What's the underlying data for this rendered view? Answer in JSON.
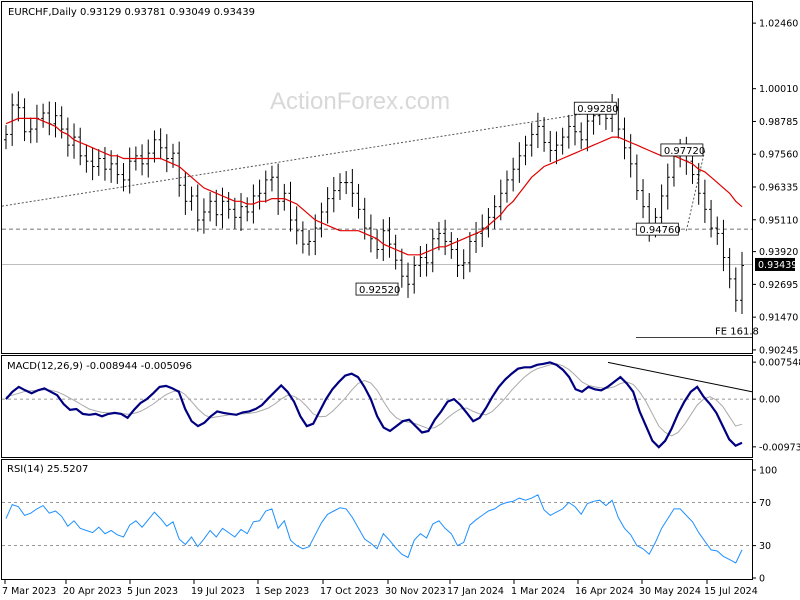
{
  "chart_data": [
    {
      "type": "ohlc",
      "title": "EURCHF,Daily",
      "ohlc_readout": "0.93129 0.93781 0.93049 0.93439",
      "watermark": "ActionForex.com",
      "ylim": [
        0.9013,
        1.0325
      ],
      "y_ticks": [
        "1.02460",
        "1.00010",
        "0.98785",
        "0.97560",
        "0.96335",
        "0.95110",
        "0.93920",
        "0.92695",
        "0.91470",
        "0.90245"
      ],
      "x_ticks": [
        "7 Mar 2023",
        "20 Apr 2023",
        "5 Jun 2023",
        "19 Jul 2023",
        "1 Sep 2023",
        "17 Oct 2023",
        "30 Nov 2023",
        "17 Jan 2024",
        "1 Mar 2024",
        "16 Apr 2024",
        "30 May 2024",
        "15 Jul 2024"
      ],
      "key_levels": [
        {
          "label": "0.99280",
          "value": 0.9928
        },
        {
          "label": "0.97720",
          "value": 0.9772
        },
        {
          "label": "0.94760",
          "value": 0.9476
        },
        {
          "label": "0.92520",
          "value": 0.9252
        }
      ],
      "last_price_label": "0.93439",
      "last_price": 0.93439,
      "annotation": "FE 161.8",
      "series": [
        {
          "name": "price",
          "close": [
            0.983,
            0.994,
            0.993,
            0.984,
            0.985,
            0.989,
            0.991,
            0.987,
            0.99,
            0.985,
            0.979,
            0.982,
            0.975,
            0.973,
            0.971,
            0.974,
            0.97,
            0.972,
            0.968,
            0.966,
            0.973,
            0.975,
            0.972,
            0.976,
            0.981,
            0.978,
            0.974,
            0.976,
            0.964,
            0.958,
            0.96,
            0.951,
            0.954,
            0.958,
            0.953,
            0.958,
            0.955,
            0.952,
            0.956,
            0.954,
            0.96,
            0.961,
            0.966,
            0.967,
            0.958,
            0.961,
            0.951,
            0.947,
            0.942,
            0.943,
            0.948,
            0.954,
            0.959,
            0.962,
            0.965,
            0.965,
            0.961,
            0.955,
            0.948,
            0.944,
            0.94,
            0.947,
            0.942,
            0.936,
            0.93,
            0.927,
            0.934,
            0.937,
            0.935,
            0.944,
            0.946,
            0.943,
            0.94,
            0.934,
            0.935,
            0.943,
            0.946,
            0.948,
            0.952,
            0.956,
            0.961,
            0.966,
            0.97,
            0.975,
            0.979,
            0.983,
            0.986,
            0.98,
            0.977,
            0.979,
            0.982,
            0.986,
            0.984,
            0.981,
            0.988,
            0.99,
            0.991,
            0.989,
            0.993,
            0.985,
            0.978,
            0.972,
            0.962,
            0.956,
            0.948,
            0.952,
            0.96,
            0.967,
            0.975,
            0.977,
            0.973,
            0.968,
            0.961,
            0.955,
            0.948,
            0.946,
            0.937,
            0.929,
            0.921,
            0.934
          ]
        },
        {
          "name": "MA",
          "values": [
            0.987,
            0.988,
            0.989,
            0.989,
            0.989,
            0.989,
            0.988,
            0.987,
            0.986,
            0.984,
            0.983,
            0.981,
            0.98,
            0.979,
            0.978,
            0.977,
            0.976,
            0.975,
            0.975,
            0.974,
            0.974,
            0.974,
            0.974,
            0.974,
            0.974,
            0.974,
            0.973,
            0.972,
            0.971,
            0.969,
            0.967,
            0.965,
            0.963,
            0.962,
            0.961,
            0.96,
            0.959,
            0.958,
            0.958,
            0.957,
            0.957,
            0.958,
            0.958,
            0.959,
            0.959,
            0.959,
            0.958,
            0.957,
            0.955,
            0.953,
            0.951,
            0.95,
            0.949,
            0.948,
            0.947,
            0.947,
            0.947,
            0.947,
            0.946,
            0.945,
            0.944,
            0.942,
            0.941,
            0.94,
            0.939,
            0.938,
            0.938,
            0.938,
            0.939,
            0.94,
            0.941,
            0.941,
            0.942,
            0.943,
            0.944,
            0.945,
            0.946,
            0.947,
            0.949,
            0.951,
            0.953,
            0.956,
            0.958,
            0.961,
            0.964,
            0.967,
            0.969,
            0.971,
            0.972,
            0.973,
            0.974,
            0.975,
            0.976,
            0.977,
            0.978,
            0.979,
            0.98,
            0.981,
            0.982,
            0.982,
            0.981,
            0.98,
            0.979,
            0.978,
            0.977,
            0.976,
            0.975,
            0.975,
            0.975,
            0.974,
            0.973,
            0.972,
            0.97,
            0.969,
            0.967,
            0.965,
            0.963,
            0.961,
            0.958,
            0.956
          ]
        }
      ]
    },
    {
      "type": "line",
      "title": "MACD(12,26,9) -0.008944 -0.005096",
      "ylim": [
        -0.0118,
        0.0088
      ],
      "y_ticks": [
        "0.007548",
        "0.00",
        "-0.00973"
      ],
      "series": [
        {
          "name": "MACD",
          "values": [
            0.0,
            0.0015,
            0.0025,
            0.0018,
            0.0012,
            0.0018,
            0.0022,
            0.0015,
            0.0008,
            -0.001,
            -0.0022,
            -0.002,
            -0.003,
            -0.0032,
            -0.003,
            -0.0035,
            -0.003,
            -0.0028,
            -0.003,
            -0.0038,
            -0.0022,
            -0.0008,
            0.0,
            0.0012,
            0.0025,
            0.0027,
            0.0022,
            0.0015,
            -0.002,
            -0.0045,
            -0.0055,
            -0.0048,
            -0.0035,
            -0.0025,
            -0.0028,
            -0.003,
            -0.0032,
            -0.0027,
            -0.0025,
            -0.002,
            -0.0012,
            0.0002,
            0.0015,
            0.0028,
            0.0015,
            -0.0005,
            -0.0035,
            -0.0055,
            -0.005,
            -0.0025,
            0.0,
            0.002,
            0.0035,
            0.0048,
            0.0052,
            0.0045,
            0.0025,
            0.0,
            -0.0035,
            -0.0058,
            -0.0065,
            -0.0055,
            -0.0045,
            -0.0042,
            -0.0055,
            -0.0068,
            -0.0065,
            -0.0042,
            -0.0025,
            -0.0005,
            0.0,
            -0.0012,
            -0.0028,
            -0.0045,
            -0.0038,
            -0.0018,
            0.0005,
            0.0025,
            0.004,
            0.0052,
            0.0062,
            0.0065,
            0.0065,
            0.007,
            0.0072,
            0.0075,
            0.007,
            0.006,
            0.0045,
            0.002,
            0.0015,
            0.0025,
            0.002,
            0.0018,
            0.0025,
            0.0035,
            0.0045,
            0.0032,
            0.0015,
            -0.0025,
            -0.0055,
            -0.0085,
            -0.0098,
            -0.0085,
            -0.006,
            -0.003,
            -0.0005,
            0.0015,
            0.0025,
            0.0005,
            -0.001,
            -0.0028,
            -0.0055,
            -0.0082,
            -0.0095,
            -0.0089
          ]
        },
        {
          "name": "Signal",
          "values": [
            0.0005,
            0.0008,
            0.0012,
            0.0016,
            0.0017,
            0.0018,
            0.0019,
            0.0018,
            0.0015,
            0.0009,
            0.0002,
            -0.0005,
            -0.0013,
            -0.002,
            -0.0024,
            -0.0027,
            -0.0028,
            -0.0028,
            -0.0029,
            -0.0031,
            -0.0029,
            -0.0025,
            -0.0018,
            -0.001,
            0.0,
            0.0009,
            0.0015,
            0.0018,
            0.0009,
            -0.0005,
            -0.002,
            -0.0032,
            -0.0038,
            -0.0036,
            -0.0034,
            -0.0032,
            -0.0031,
            -0.003,
            -0.0029,
            -0.0027,
            -0.0023,
            -0.0018,
            -0.001,
            0.0,
            0.0008,
            0.0006,
            -0.0002,
            -0.0015,
            -0.003,
            -0.0036,
            -0.0035,
            -0.0025,
            -0.0012,
            0.0002,
            0.0018,
            0.0032,
            0.0038,
            0.0033,
            0.0018,
            -0.0005,
            -0.0025,
            -0.0038,
            -0.0045,
            -0.0047,
            -0.005,
            -0.0055,
            -0.006,
            -0.0058,
            -0.005,
            -0.0038,
            -0.0028,
            -0.002,
            -0.0018,
            -0.0025,
            -0.003,
            -0.0032,
            -0.0025,
            -0.0012,
            0.0002,
            0.0018,
            0.0032,
            0.0045,
            0.0055,
            0.0062,
            0.0066,
            0.007,
            0.0072,
            0.0068,
            0.006,
            0.0048,
            0.0035,
            0.0028,
            0.0025,
            0.0023,
            0.0022,
            0.0025,
            0.0032,
            0.0035,
            0.003,
            0.0015,
            -0.0005,
            -0.003,
            -0.0055,
            -0.0068,
            -0.0075,
            -0.0068,
            -0.0052,
            -0.0032,
            -0.0012,
            0.0,
            0.0005,
            -0.0002,
            -0.0015,
            -0.0035,
            -0.0055,
            -0.0051
          ]
        }
      ],
      "annotations": [
        "divergence trendline"
      ]
    },
    {
      "type": "line",
      "title": "RSI(14) 25.5207",
      "ylim": [
        0,
        100
      ],
      "y_ticks": [
        "100",
        "70",
        "30",
        "0"
      ],
      "levels": [
        70,
        30
      ],
      "series": [
        {
          "name": "RSI",
          "values": [
            55,
            68,
            66,
            58,
            60,
            64,
            67,
            60,
            62,
            57,
            48,
            53,
            46,
            44,
            42,
            47,
            41,
            44,
            40,
            38,
            49,
            53,
            47,
            54,
            61,
            55,
            48,
            52,
            36,
            31,
            38,
            29,
            36,
            44,
            38,
            46,
            42,
            38,
            45,
            41,
            52,
            53,
            62,
            64,
            46,
            53,
            35,
            30,
            27,
            29,
            40,
            51,
            59,
            62,
            65,
            64,
            56,
            46,
            36,
            32,
            27,
            41,
            35,
            28,
            22,
            19,
            35,
            41,
            37,
            50,
            53,
            46,
            41,
            30,
            33,
            49,
            54,
            58,
            62,
            64,
            68,
            70,
            71,
            74,
            72,
            74,
            77,
            63,
            58,
            61,
            64,
            70,
            66,
            59,
            69,
            71,
            72,
            67,
            72,
            56,
            46,
            40,
            30,
            27,
            22,
            33,
            46,
            55,
            64,
            64,
            58,
            52,
            42,
            34,
            26,
            25,
            20,
            17,
            14,
            26
          ]
        }
      ]
    }
  ]
}
